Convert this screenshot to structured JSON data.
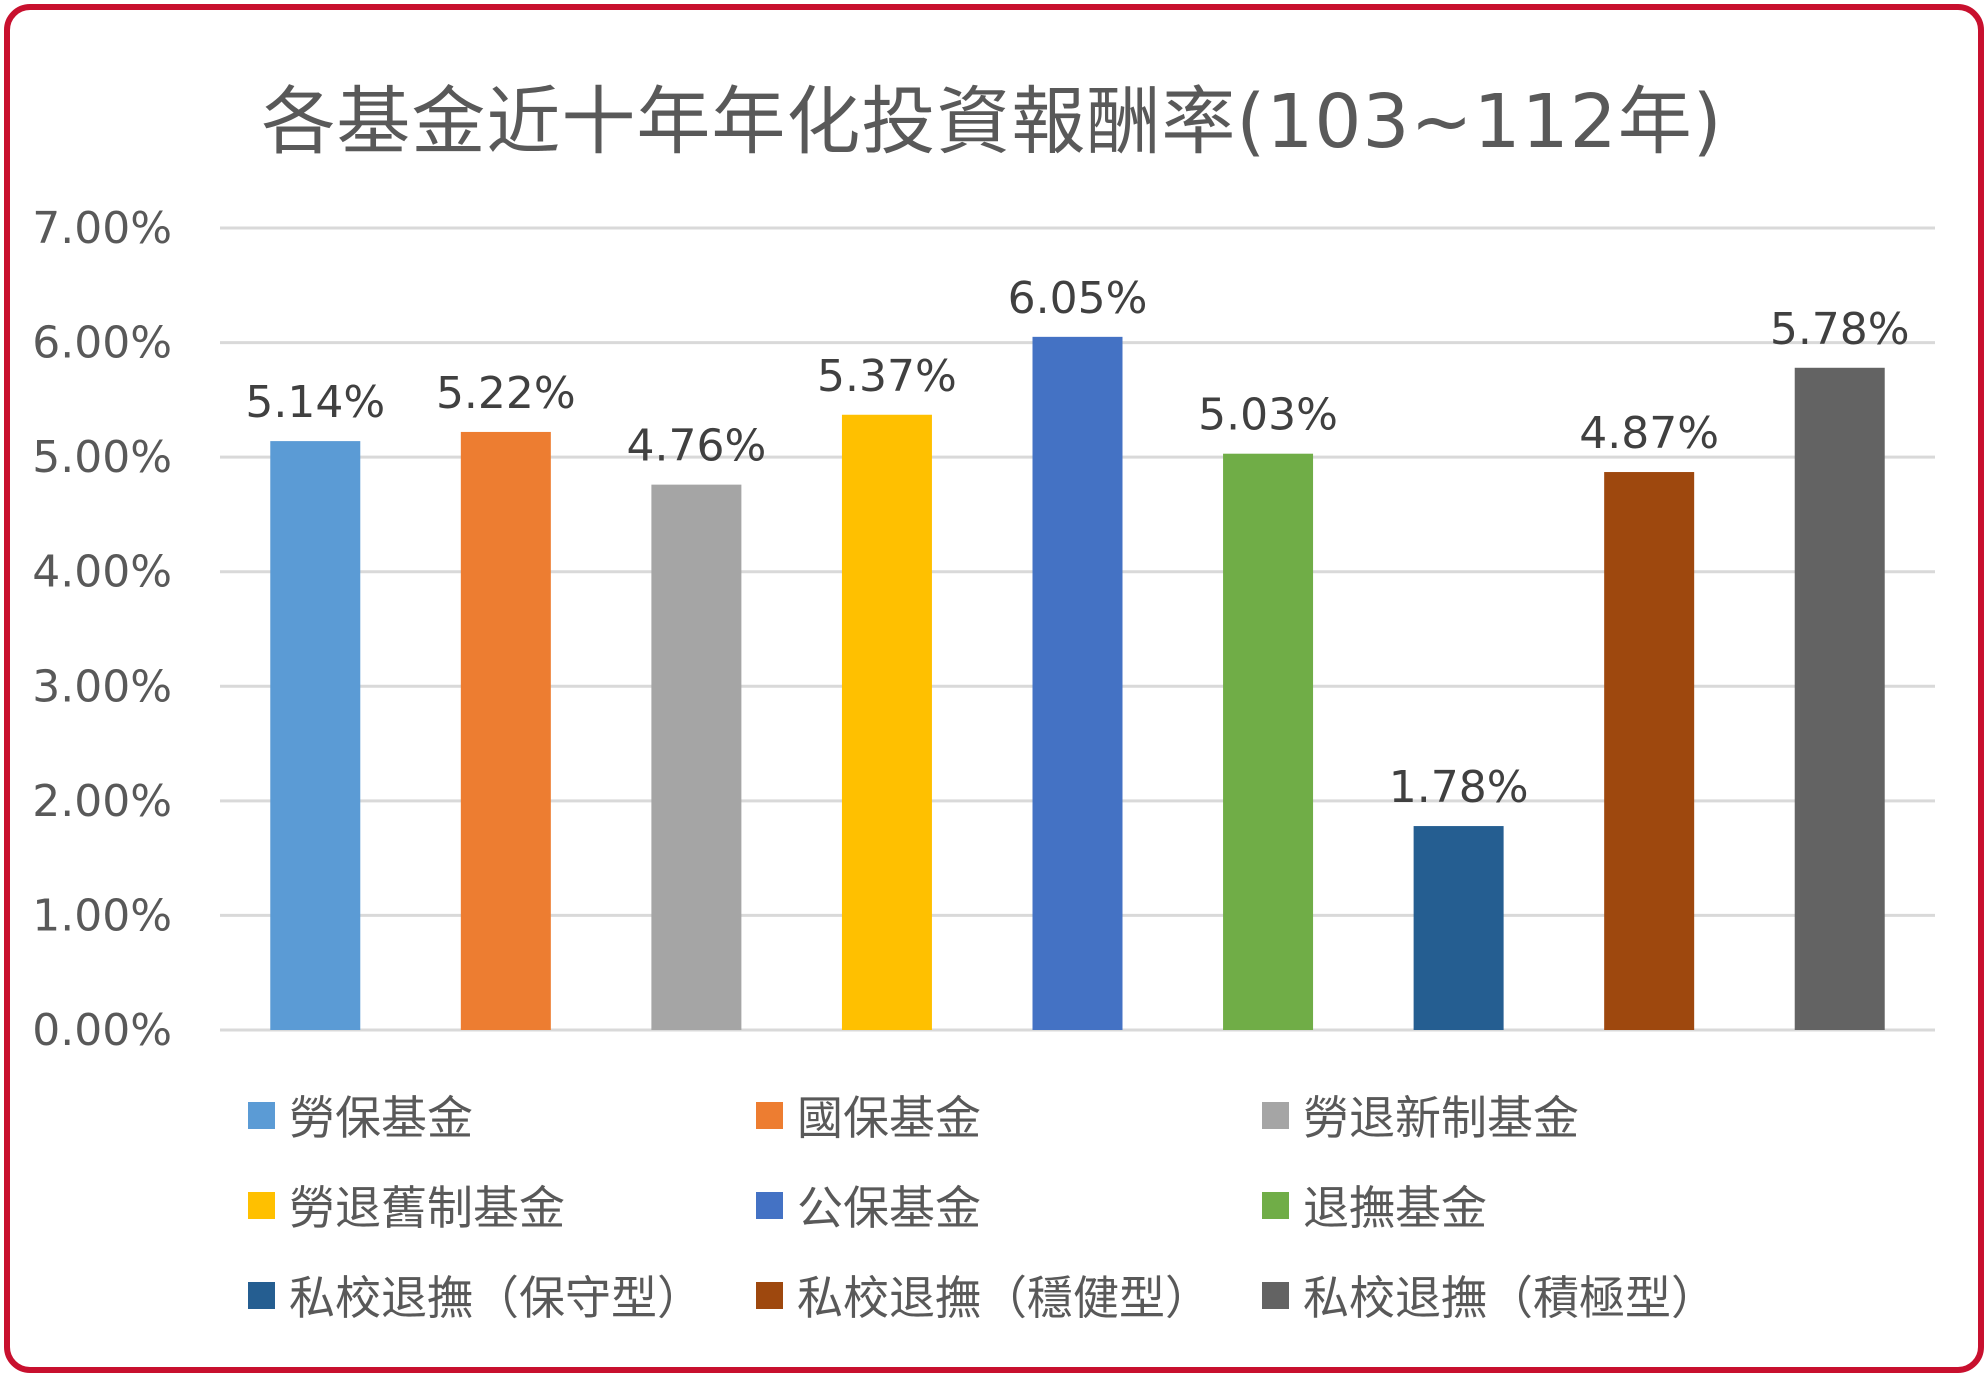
{
  "chart_data": {
    "type": "bar",
    "title": "各基金近十年年化投資報酬率(103~112年)",
    "categories": [
      "勞保基金",
      "國保基金",
      "勞退新制基金",
      "勞退舊制基金",
      "公保基金",
      "退撫基金",
      "私校退撫（保守型）",
      "私校退撫（穩健型）",
      "私校退撫（積極型）"
    ],
    "values": [
      5.14,
      5.22,
      4.76,
      5.37,
      6.05,
      5.03,
      1.78,
      4.87,
      5.78
    ],
    "data_labels": [
      "5.14%",
      "5.22%",
      "4.76%",
      "5.37%",
      "6.05%",
      "5.03%",
      "1.78%",
      "4.87%",
      "5.78%"
    ],
    "colors": [
      "#5b9bd5",
      "#ed7d31",
      "#a5a5a5",
      "#ffc000",
      "#4472c4",
      "#70ad47",
      "#255e91",
      "#9e480e",
      "#636363"
    ],
    "y_ticks": [
      "0.00%",
      "1.00%",
      "2.00%",
      "3.00%",
      "4.00%",
      "5.00%",
      "6.00%",
      "7.00%"
    ],
    "ylim": [
      0,
      7
    ],
    "grid": true,
    "legend_position": "bottom",
    "xlabel": "",
    "ylabel": ""
  },
  "frame_color": "#c8102e"
}
